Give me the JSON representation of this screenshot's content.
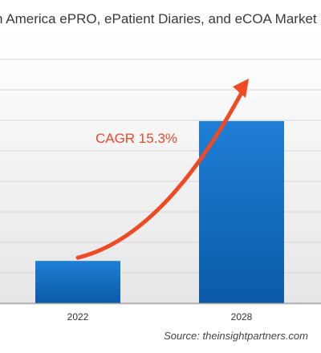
{
  "title": "n America ePRO, ePatient Diaries, and eCOA Market",
  "source": "Source: theinsightpartners.com",
  "colors": {
    "bar_top": "#1f7fd6",
    "bar_bottom": "#0b5aa8",
    "arrow": "#ef4a24",
    "cagr_text": "#e8482a",
    "grid": "#d7d7d7",
    "axis": "#8a8a8a"
  },
  "chart_data": {
    "type": "bar",
    "categories": [
      "2022",
      "2028"
    ],
    "values": [
      1,
      4.3
    ],
    "ylim": [
      0,
      6.4
    ],
    "grid": true,
    "annotations": [
      {
        "text": "CAGR 15.3%",
        "kind": "growth-arrow"
      }
    ]
  }
}
